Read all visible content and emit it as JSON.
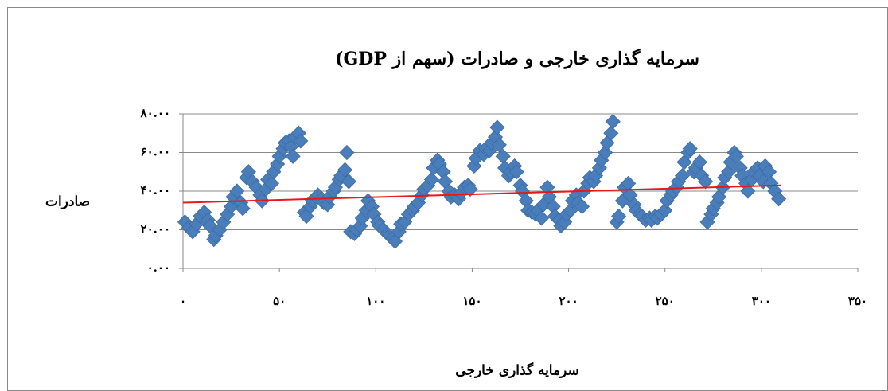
{
  "chart_data": {
    "type": "scatter",
    "title": "سرمایه گذاری خارجی و صادرات (سهم از GDP)",
    "x_label": "سرمایه گذاری خارجی",
    "y_label": "صادرات",
    "xlim": [
      0,
      350
    ],
    "xticks": [
      {
        "value": 0,
        "label": "۰"
      },
      {
        "value": 50,
        "label": "۵۰"
      },
      {
        "value": 100,
        "label": "۱۰۰"
      },
      {
        "value": 150,
        "label": "۱۵۰"
      },
      {
        "value": 200,
        "label": "۲۰۰"
      },
      {
        "value": 250,
        "label": "۲۵۰"
      },
      {
        "value": 300,
        "label": "۳۰۰"
      },
      {
        "value": 350,
        "label": "۳۵۰"
      }
    ],
    "ylim": [
      0,
      80
    ],
    "yticks": [
      {
        "value": 0,
        "label": "۰.۰۰"
      },
      {
        "value": 20,
        "label": "۲۰.۰۰"
      },
      {
        "value": 40,
        "label": "۴۰.۰۰"
      },
      {
        "value": 60,
        "label": "۶۰.۰۰"
      },
      {
        "value": 80,
        "label": "۸۰.۰۰"
      }
    ],
    "grid": true,
    "color": "#4a7ebb",
    "x": [
      1,
      3,
      5,
      7,
      9,
      11,
      13,
      14,
      16,
      17,
      19,
      21,
      23,
      25,
      26,
      28,
      30,
      31,
      33,
      34,
      36,
      38,
      40,
      41,
      43,
      44,
      46,
      47,
      49,
      50,
      52,
      53,
      55,
      56,
      57,
      58,
      60,
      61,
      63,
      64,
      66,
      67,
      69,
      70,
      72,
      73,
      75,
      76,
      78,
      79,
      81,
      82,
      84,
      85,
      86,
      87,
      89,
      90,
      92,
      93,
      95,
      96,
      98,
      99,
      101,
      102,
      104,
      106,
      107,
      109,
      110,
      112,
      113,
      115,
      117,
      119,
      120,
      122,
      124,
      125,
      127,
      129,
      130,
      132,
      133,
      135,
      136,
      138,
      139,
      141,
      143,
      144,
      146,
      148,
      149,
      151,
      152,
      154,
      156,
      157,
      159,
      160,
      162,
      163,
      164,
      166,
      167,
      169,
      170,
      172,
      173,
      175,
      176,
      178,
      179,
      181,
      183,
      184,
      186,
      187,
      189,
      190,
      192,
      193,
      195,
      196,
      198,
      199,
      201,
      202,
      204,
      205,
      207,
      208,
      210,
      211,
      213,
      214,
      216,
      217,
      219,
      220,
      222,
      223,
      225,
      226,
      228,
      229,
      231,
      232,
      234,
      235,
      237,
      238,
      240,
      242,
      243,
      245,
      246,
      248,
      250,
      251,
      253,
      254,
      256,
      257,
      259,
      260,
      262,
      263,
      265,
      266,
      268,
      269,
      271,
      272,
      274,
      275,
      277,
      278,
      280,
      281,
      283,
      284,
      286,
      287,
      289,
      290,
      292,
      293,
      295,
      296,
      298,
      299,
      301,
      302,
      304,
      305,
      307,
      309
    ],
    "values": [
      24,
      21,
      19,
      23,
      27,
      29,
      25,
      22,
      15,
      17,
      20,
      24,
      28,
      32,
      37,
      40,
      34,
      31,
      47,
      50,
      45,
      42,
      38,
      35,
      41,
      46,
      44,
      50,
      54,
      58,
      62,
      65,
      66,
      63,
      58,
      68,
      70,
      66,
      29,
      27,
      32,
      35,
      37,
      38,
      36,
      34,
      33,
      37,
      40,
      42,
      46,
      48,
      51,
      60,
      45,
      19,
      18,
      20,
      22,
      26,
      30,
      35,
      32,
      28,
      24,
      22,
      20,
      18,
      17,
      16,
      14,
      19,
      23,
      24,
      28,
      30,
      32,
      34,
      38,
      41,
      43,
      46,
      52,
      56,
      54,
      50,
      45,
      40,
      37,
      38,
      36,
      39,
      42,
      43,
      41,
      53,
      57,
      61,
      59,
      62,
      61,
      65,
      68,
      73,
      64,
      58,
      52,
      48,
      50,
      53,
      50,
      43,
      40,
      35,
      30,
      29,
      28,
      30,
      26,
      33,
      42,
      37,
      32,
      27,
      25,
      22,
      24,
      28,
      30,
      35,
      38,
      34,
      32,
      40,
      44,
      47,
      45,
      48,
      52,
      56,
      60,
      65,
      70,
      76,
      24,
      27,
      35,
      42,
      44,
      38,
      33,
      30,
      28,
      27,
      25,
      26,
      25,
      27,
      26,
      28,
      30,
      35,
      38,
      40,
      42,
      45,
      48,
      55,
      60,
      62,
      50,
      52,
      55,
      48,
      45,
      24,
      28,
      31,
      34,
      37,
      42,
      47,
      50,
      55,
      60,
      58,
      52,
      48,
      44,
      40,
      46,
      50,
      52,
      48,
      45,
      53,
      50,
      44,
      40,
      36
    ],
    "trendline": {
      "color": "#e31a1c",
      "x": [
        0,
        310
      ],
      "values": [
        34,
        43
      ]
    }
  }
}
